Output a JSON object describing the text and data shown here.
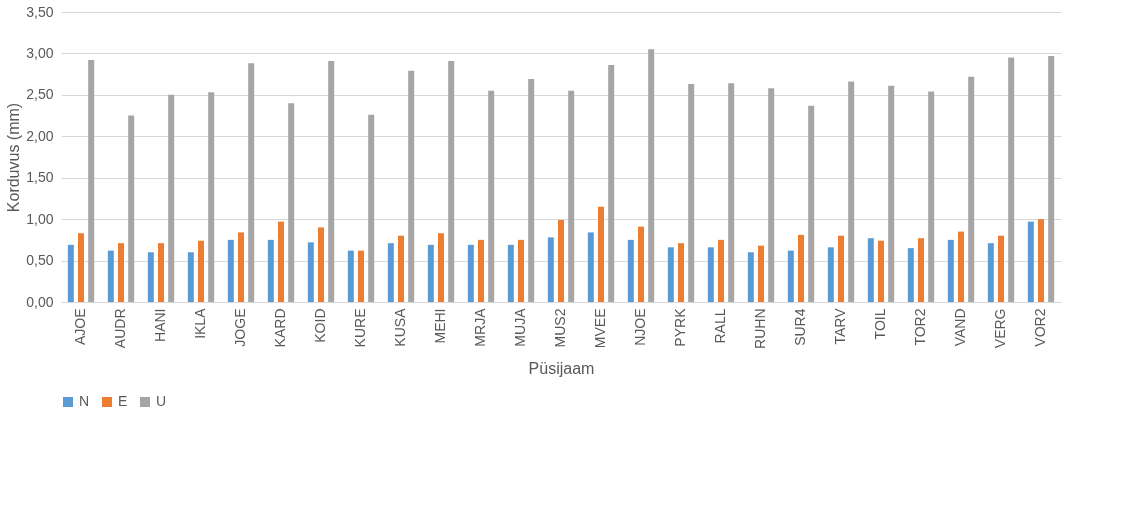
{
  "chart_data": {
    "type": "bar",
    "xlabel": "Püsijaam",
    "ylabel": "Korduvus (mm)",
    "categories": [
      "AJOE",
      "AUDR",
      "HANI",
      "IKLA",
      "JOGE",
      "KARD",
      "KOID",
      "KURE",
      "KUSA",
      "MEHI",
      "MRJA",
      "MUJA",
      "MUS2",
      "MVEE",
      "NJOE",
      "PYRK",
      "RALL",
      "RUHN",
      "SUR4",
      "TARV",
      "TOIL",
      "TOR2",
      "VAND",
      "VERG",
      "VOR2"
    ],
    "series": [
      {
        "name": "N",
        "color": "#5b9bd5",
        "values": [
          0.69,
          0.62,
          0.6,
          0.6,
          0.75,
          0.75,
          0.72,
          0.62,
          0.71,
          0.69,
          0.69,
          0.69,
          0.78,
          0.84,
          0.75,
          0.66,
          0.66,
          0.6,
          0.62,
          0.66,
          0.77,
          0.65,
          0.75,
          0.71,
          0.97
        ]
      },
      {
        "name": "E",
        "color": "#ed7d31",
        "values": [
          0.83,
          0.71,
          0.71,
          0.74,
          0.84,
          0.97,
          0.9,
          0.62,
          0.8,
          0.83,
          0.75,
          0.75,
          0.99,
          1.15,
          0.91,
          0.71,
          0.75,
          0.68,
          0.81,
          0.8,
          0.74,
          0.77,
          0.85,
          0.8,
          1.0
        ]
      },
      {
        "name": "U",
        "color": "#a5a5a5",
        "values": [
          2.92,
          2.25,
          2.5,
          2.53,
          2.88,
          2.4,
          2.91,
          2.26,
          2.79,
          2.91,
          2.55,
          2.69,
          2.55,
          2.86,
          3.05,
          2.63,
          2.64,
          2.58,
          2.37,
          2.66,
          2.61,
          2.54,
          2.72,
          2.95,
          2.97
        ]
      }
    ],
    "ylim": [
      0,
      3.5
    ],
    "yticks": [
      {
        "value": 0,
        "label": "0,00"
      },
      {
        "value": 0.5,
        "label": "0,50"
      },
      {
        "value": 1,
        "label": "1,00"
      },
      {
        "value": 1.5,
        "label": "1,50"
      },
      {
        "value": 2,
        "label": "2,00"
      },
      {
        "value": 2.5,
        "label": "2,50"
      },
      {
        "value": 3,
        "label": "3,00"
      },
      {
        "value": 3.5,
        "label": "3,50"
      }
    ],
    "grid": "y",
    "legend": "bottom"
  }
}
